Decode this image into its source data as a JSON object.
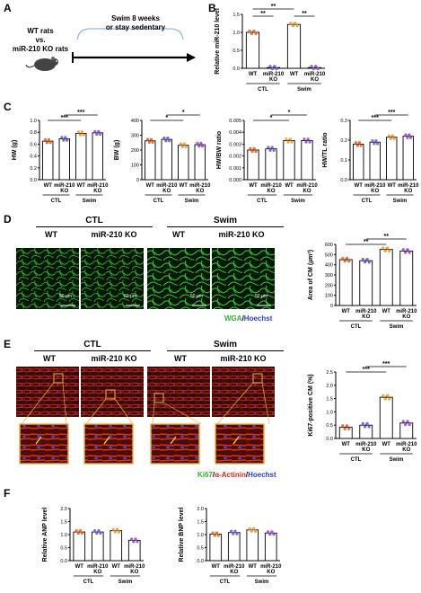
{
  "panels": {
    "A": {
      "letter": "A",
      "left_text_line1": "WT rats",
      "left_text_line2": "vs.",
      "left_text_line3": "miR-210 KO rats",
      "box_line1": "Swim 8 weeks",
      "box_line2": "or stay sedentary"
    },
    "B": {
      "letter": "B"
    },
    "C": {
      "letter": "C"
    },
    "D": {
      "letter": "D",
      "group_ctl": "CTL",
      "group_swim": "Swim",
      "col_wt": "WT",
      "col_ko": "miR-210 KO",
      "scale": "50 µm",
      "legend_wga": "WGA",
      "legend_sep": "/",
      "legend_hoechst": "Hoechst"
    },
    "E": {
      "letter": "E",
      "group_ctl": "CTL",
      "group_swim": "Swim",
      "col_wt": "WT",
      "col_ko": "miR-210 KO",
      "legend_ki67": "Ki67",
      "legend_sep1": "/",
      "legend_actinin": "α-Actinin",
      "legend_sep2": "/",
      "legend_hoechst": "Hoechst"
    },
    "F": {
      "letter": "F"
    }
  },
  "colors": {
    "wt_ctl": "#e8733a",
    "ko_ctl": "#7b6fd6",
    "wt_swim": "#f0a340",
    "ko_swim": "#9b63c9",
    "wga_green": "#2fb32f",
    "actinin_red": "#d8261d",
    "hoechst_blue": "#2a3fd1"
  },
  "x_ticks": {
    "wt": "WT",
    "ko1": "miR-210",
    "ko2": "KO",
    "ctl": "CTL",
    "swim": "Swim"
  },
  "chart_data": [
    {
      "id": "B",
      "type": "bar",
      "ylabel": "Relative miR-210 level",
      "ylim": [
        0,
        1.5
      ],
      "yticks": [
        "0.0",
        "0.5",
        "1.0",
        "1.5"
      ],
      "categories": [
        "WT",
        "miR-210 KO",
        "WT",
        "miR-210 KO"
      ],
      "groups": [
        "CTL",
        "Swim"
      ],
      "values": [
        1.0,
        0.02,
        1.22,
        0.02
      ],
      "significance": [
        "**",
        "**",
        "**"
      ]
    },
    {
      "id": "C1",
      "type": "bar",
      "ylabel": "HW (g)",
      "ylim": [
        0,
        1.0
      ],
      "yticks": [
        "0.0",
        "0.2",
        "0.4",
        "0.6",
        "0.8",
        "1.0"
      ],
      "categories": [
        "WT",
        "miR-210 KO",
        "WT",
        "miR-210 KO"
      ],
      "groups": [
        "CTL",
        "Swim"
      ],
      "values": [
        0.65,
        0.69,
        0.78,
        0.79
      ],
      "significance": [
        "***",
        "***"
      ]
    },
    {
      "id": "C2",
      "type": "bar",
      "ylabel": "BW (g)",
      "ylim": [
        0,
        400
      ],
      "yticks": [
        "0",
        "100",
        "200",
        "300",
        "400"
      ],
      "categories": [
        "WT",
        "miR-210 KO",
        "WT",
        "miR-210 KO"
      ],
      "groups": [
        "CTL",
        "Swim"
      ],
      "values": [
        262,
        272,
        232,
        236
      ],
      "significance": [
        "*",
        "*"
      ]
    },
    {
      "id": "C3",
      "type": "bar",
      "ylabel": "HW/BW ratio",
      "ylim": [
        0,
        0.005
      ],
      "yticks": [
        "0.000",
        "0.001",
        "0.002",
        "0.003",
        "0.004",
        "0.005"
      ],
      "categories": [
        "WT",
        "miR-210 KO",
        "WT",
        "miR-210 KO"
      ],
      "groups": [
        "CTL",
        "Swim"
      ],
      "values": [
        0.0025,
        0.0026,
        0.0033,
        0.0033
      ],
      "significance": [
        "*",
        "*"
      ]
    },
    {
      "id": "C4",
      "type": "bar",
      "ylabel": "HW/TL ratio",
      "ylim": [
        0,
        0.3
      ],
      "yticks": [
        "0.0",
        "0.1",
        "0.2",
        "0.3"
      ],
      "categories": [
        "WT",
        "miR-210 KO",
        "WT",
        "miR-210 KO"
      ],
      "groups": [
        "CTL",
        "Swim"
      ],
      "values": [
        0.18,
        0.19,
        0.215,
        0.22
      ],
      "significance": [
        "***",
        "***"
      ]
    },
    {
      "id": "D",
      "type": "bar",
      "ylabel": "Area of CM (µm²)",
      "ylim": [
        0,
        600
      ],
      "yticks": [
        "0",
        "100",
        "200",
        "300",
        "400",
        "500",
        "600"
      ],
      "categories": [
        "WT",
        "miR-210 KO",
        "WT",
        "miR-210 KO"
      ],
      "groups": [
        "CTL",
        "Swim"
      ],
      "values": [
        450,
        440,
        550,
        535
      ],
      "significance": [
        "**",
        "**"
      ]
    },
    {
      "id": "E",
      "type": "bar",
      "ylabel": "Ki67-positive CM (%)",
      "ylim": [
        0,
        2.5
      ],
      "yticks": [
        "0.0",
        "0.5",
        "1.0",
        "1.5",
        "2.0",
        "2.5"
      ],
      "categories": [
        "WT",
        "miR-210 KO",
        "WT",
        "miR-210 KO"
      ],
      "groups": [
        "CTL",
        "Swim"
      ],
      "values": [
        0.42,
        0.5,
        1.55,
        0.58
      ],
      "significance": [
        "***",
        "***"
      ]
    },
    {
      "id": "F1",
      "type": "bar",
      "ylabel": "Relative ANP level",
      "ylim": [
        0,
        2.0
      ],
      "yticks": [
        "0.0",
        "0.5",
        "1.0",
        "1.5",
        "2.0"
      ],
      "categories": [
        "WT",
        "miR-210 KO",
        "WT",
        "miR-210 KO"
      ],
      "groups": [
        "CTL",
        "Swim"
      ],
      "values": [
        1.1,
        1.1,
        1.15,
        0.78
      ],
      "significance": []
    },
    {
      "id": "F2",
      "type": "bar",
      "ylabel": "Relative BNP level",
      "ylim": [
        0,
        2.0
      ],
      "yticks": [
        "0.0",
        "0.5",
        "1.0",
        "1.5",
        "2.0"
      ],
      "categories": [
        "WT",
        "miR-210 KO",
        "WT",
        "miR-210 KO"
      ],
      "groups": [
        "CTL",
        "Swim"
      ],
      "values": [
        1.02,
        1.08,
        1.18,
        1.06
      ],
      "significance": []
    }
  ]
}
